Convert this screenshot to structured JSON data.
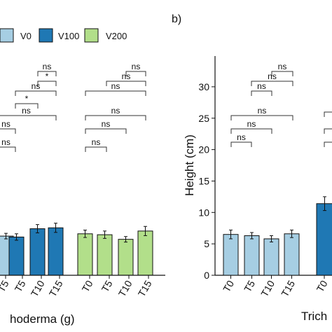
{
  "panel_b_label": "b)",
  "legend": {
    "items": [
      {
        "label": "V0",
        "color": "#a6cee3"
      },
      {
        "label": "V100",
        "color": "#1f78b4"
      },
      {
        "label": "V200",
        "color": "#b2df8a"
      }
    ]
  },
  "colors": {
    "V0": "#a6cee3",
    "V100": "#1f78b4",
    "V200": "#b2df8a",
    "stroke": "#111111"
  },
  "chart_data": [
    {
      "type": "bar",
      "panel": "a",
      "xlabel": "Trichoderma (g)",
      "xlabel_visible": "hoderma (g)",
      "ylabel": "",
      "ylim": [
        0,
        35
      ],
      "categories": [
        "T0",
        "T5",
        "T10",
        "T15"
      ],
      "series": [
        {
          "name": "V0",
          "values": [
            null,
            8.5,
            null,
            null
          ],
          "errors": [
            null,
            0.6,
            null,
            null
          ]
        },
        {
          "name": "V100",
          "values": [
            null,
            8.3,
            10.1,
            10.3
          ],
          "errors": [
            null,
            0.7,
            0.9,
            1.0
          ]
        },
        {
          "name": "V200",
          "values": [
            9.0,
            8.8,
            7.8,
            9.6
          ],
          "errors": [
            0.8,
            0.8,
            0.6,
            1.0
          ]
        }
      ],
      "annotations": [
        {
          "group": "V100",
          "labels": [
            "ns",
            "*",
            "ns",
            "*",
            "ns",
            "ns"
          ]
        },
        {
          "group": "V200",
          "labels": [
            "ns",
            "ns",
            "ns",
            "ns",
            "ns",
            "ns"
          ]
        }
      ]
    },
    {
      "type": "bar",
      "panel": "b",
      "xlabel": "Trichoderma (g)",
      "xlabel_visible": "Trich",
      "ylabel": "Height (cm)",
      "ylim": [
        0,
        32
      ],
      "yticks": [
        0,
        5,
        10,
        15,
        20,
        25,
        30
      ],
      "categories": [
        "T0",
        "T5",
        "T10",
        "T15"
      ],
      "series": [
        {
          "name": "V0",
          "values": [
            6.5,
            6.3,
            5.8,
            6.6
          ],
          "errors": [
            0.7,
            0.5,
            0.5,
            0.6
          ]
        },
        {
          "name": "V100",
          "values": [
            11.4,
            null,
            null,
            null
          ],
          "errors": [
            1.1,
            null,
            null,
            null
          ]
        }
      ],
      "annotations": [
        {
          "group": "V0",
          "labels": [
            "ns",
            "ns",
            "ns",
            "ns",
            "ns",
            "ns"
          ]
        },
        {
          "group": "V100",
          "labels": []
        }
      ]
    }
  ]
}
